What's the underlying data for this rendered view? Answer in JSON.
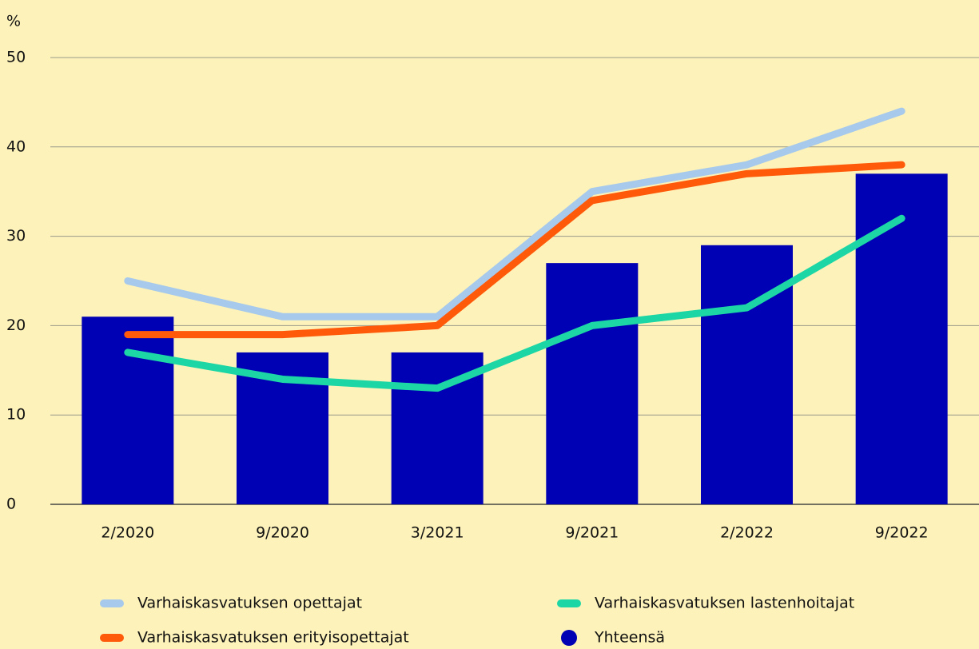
{
  "chart_data": {
    "type": "bar",
    "y_unit": "%",
    "categories": [
      "2/2020",
      "9/2020",
      "3/2021",
      "9/2021",
      "2/2022",
      "9/2022"
    ],
    "series": [
      {
        "name": "Yhteensä",
        "type": "bar",
        "color": "#0000b4",
        "values": [
          21,
          17,
          17,
          27,
          29,
          37
        ]
      },
      {
        "name": "Varhaiskasvatuksen opettajat",
        "type": "line",
        "color": "#a6c9ec",
        "values": [
          25,
          21,
          21,
          35,
          38,
          44
        ]
      },
      {
        "name": "Varhaiskasvatuksen erityisopettajat",
        "type": "line",
        "color": "#ff5a0a",
        "values": [
          19,
          19,
          20,
          34,
          37,
          38
        ]
      },
      {
        "name": "Varhaiskasvatuksen lastenhoitajat",
        "type": "line",
        "color": "#1dd6a5",
        "values": [
          17,
          14,
          13,
          20,
          22,
          32
        ]
      }
    ],
    "ylim": [
      0,
      50
    ],
    "yticks": [
      0,
      10,
      20,
      30,
      40,
      50
    ],
    "grid": true
  }
}
